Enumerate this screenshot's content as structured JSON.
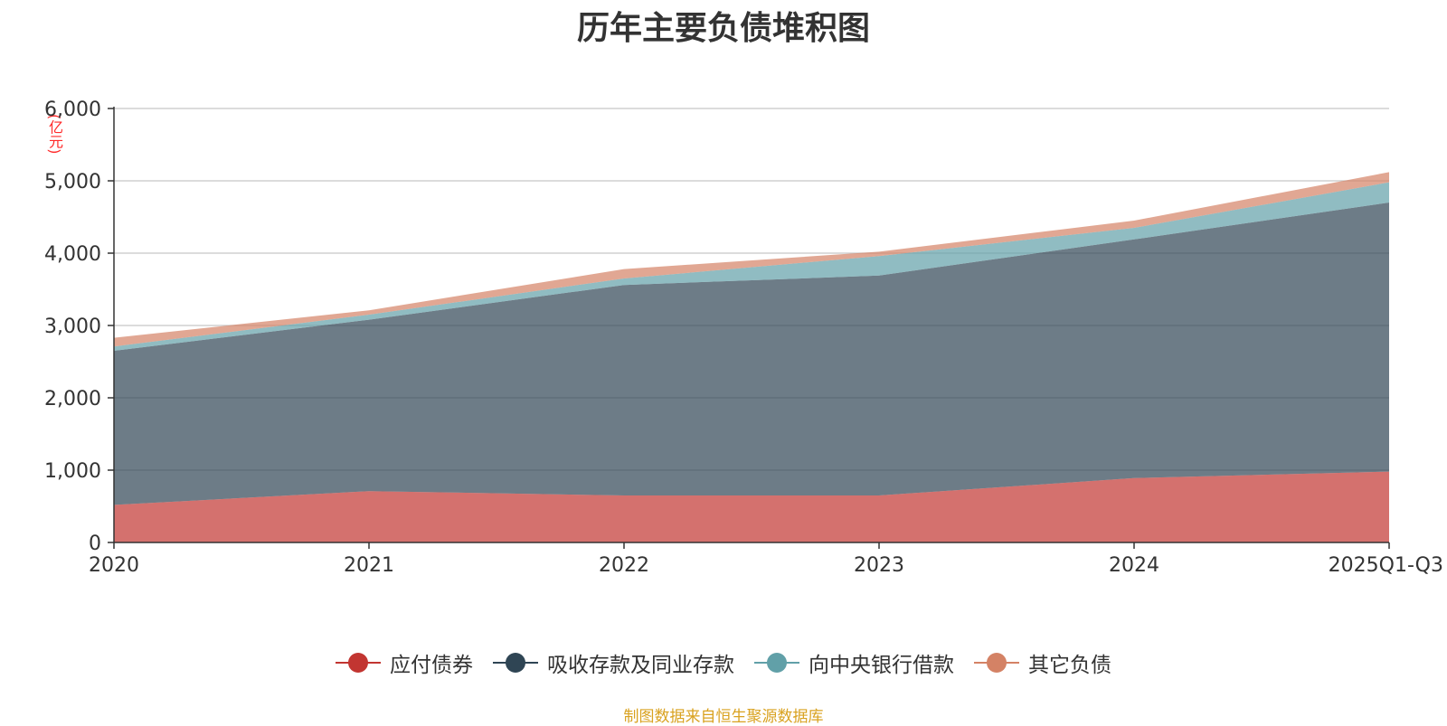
{
  "chart_data": {
    "type": "area",
    "stacked": true,
    "title": "历年主要负债堆积图",
    "unit_label": "(亿元)",
    "categories": [
      "2020",
      "2021",
      "2022",
      "2023",
      "2024",
      "2025Q1-Q3"
    ],
    "ylim": [
      0,
      6000
    ],
    "yticks": [
      0,
      1000,
      2000,
      3000,
      4000,
      5000,
      6000
    ],
    "ytick_labels": [
      "0",
      "1,000",
      "2,000",
      "3,000",
      "4,000",
      "5,000",
      "6,000"
    ],
    "grid": true,
    "legend_position": "bottom",
    "series": [
      {
        "name": "应付债券",
        "color": "#c23531",
        "values": [
          520,
          710,
          650,
          650,
          890,
          980
        ]
      },
      {
        "name": "吸收存款及同业存款",
        "color": "#2f4554",
        "values": [
          2130,
          2370,
          2910,
          3040,
          3300,
          3720
        ]
      },
      {
        "name": "向中央银行借款",
        "color": "#61a0a8",
        "values": [
          60,
          70,
          90,
          270,
          160,
          280
        ]
      },
      {
        "name": "其它负债",
        "color": "#d48265",
        "values": [
          120,
          60,
          130,
          60,
          100,
          140
        ]
      }
    ]
  },
  "footer": {
    "source": "制图数据来自恒生聚源数据库"
  }
}
